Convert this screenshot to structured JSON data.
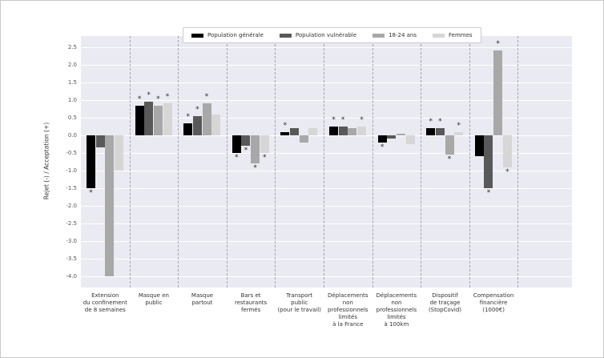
{
  "figure": {
    "background": "#ffffff",
    "plot_background": "#eaeaf2",
    "gridline_color": "#ffffff",
    "separator_color": "#a3a3ad"
  },
  "chart_data": {
    "type": "bar",
    "title": "",
    "xlabel": "",
    "ylabel": "Rejet (-) / Acceptation (+)",
    "ylim": [
      -4.35,
      2.85
    ],
    "yticks": [
      2.5,
      2.0,
      1.5,
      1.0,
      0.5,
      0.0,
      -0.5,
      -1.0,
      -1.5,
      -2.0,
      -2.5,
      -3.0,
      -3.5,
      -4.0
    ],
    "grid": true,
    "legend_position": "top",
    "annotation_symbol": "*",
    "annotation_meaning": "statistically-significant marker shown beyond bar end",
    "categories": [
      "Extension\ndu confinement\nde 8 semaines",
      "Masque en\npublic",
      "Masque\npartout",
      "Bars et\nrestaurants\nfermés",
      "Transport\npublic\n(pour le travail)",
      "Déplacements\nnon\nprofessionnels\nlimités\nà la France",
      "Déplacements\nnon\nprofessionnels\nlimités\nà 100km",
      "Dispositif\nde traçage\n(StopCovid)",
      "Compensation\nfinancière\n(1000€)"
    ],
    "series": [
      {
        "name": "Population générale",
        "color": "#000000",
        "values": [
          -1.5,
          0.85,
          0.35,
          -0.5,
          0.1,
          0.25,
          -0.2,
          0.2,
          -0.6
        ],
        "significant": [
          true,
          true,
          true,
          true,
          true,
          true,
          true,
          true,
          false
        ]
      },
      {
        "name": "Population vulnérable",
        "color": "#595959",
        "values": [
          -0.35,
          0.95,
          0.55,
          -0.3,
          0.2,
          0.25,
          -0.1,
          0.2,
          -1.5
        ],
        "significant": [
          false,
          true,
          true,
          true,
          false,
          true,
          false,
          true,
          true
        ]
      },
      {
        "name": "18-24 ans",
        "color": "#a8a8a8",
        "values": [
          -4.0,
          0.85,
          0.9,
          -0.8,
          -0.2,
          0.2,
          0.05,
          -0.55,
          2.4
        ],
        "significant": [
          false,
          true,
          true,
          true,
          false,
          false,
          false,
          true,
          true
        ]
      },
      {
        "name": "Femmes",
        "color": "#d6d6d6",
        "values": [
          -1.0,
          0.9,
          0.6,
          -0.5,
          0.2,
          0.25,
          -0.25,
          0.1,
          -0.9
        ],
        "significant": [
          false,
          true,
          false,
          true,
          false,
          true,
          false,
          true,
          true
        ]
      }
    ]
  }
}
